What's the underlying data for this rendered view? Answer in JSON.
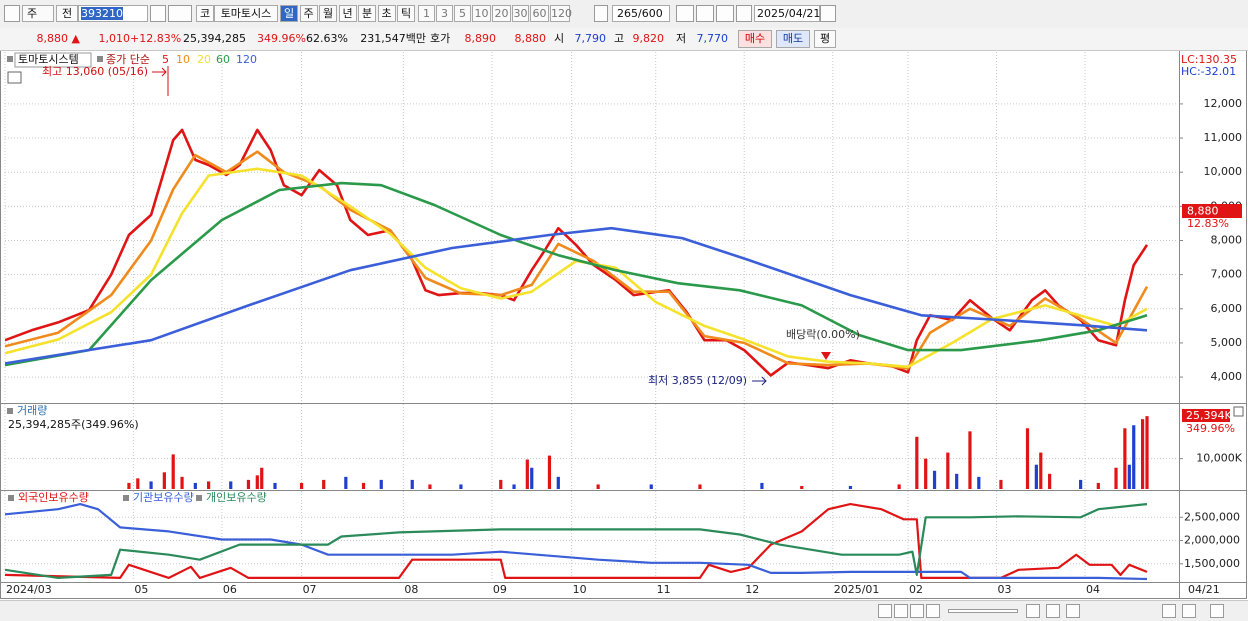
{
  "toolbar": {
    "market": "주",
    "mode": "전",
    "code": "393210",
    "tabs": [
      "코",
      "토마토시스"
    ],
    "periods": [
      "일",
      "주",
      "월",
      "년",
      "분",
      "초",
      "틱"
    ],
    "intervals": [
      "1",
      "3",
      "5",
      "10",
      "20",
      "30",
      "60",
      "120"
    ],
    "count": "265",
    "count_max": "/600",
    "date": "2025/04/21"
  },
  "quote": {
    "price": "8,880 ▲",
    "change": "1,010",
    "change_rate": "+12.83%",
    "volume": "25,394,285",
    "volume_rate": "349.96%",
    "turnover": "62.63%",
    "amount": "231,547백만",
    "ask_label": "호가",
    "ask": "8,890",
    "bid": "8,880",
    "open_label": "시",
    "open": "7,790",
    "high_label": "고",
    "high": "9,820",
    "low_label": "저",
    "low": "7,770",
    "buy": "매수",
    "sell": "매도",
    "avg": "평"
  },
  "chart_data": [
    {
      "type": "line",
      "title": "토마토시스템",
      "subtitle": "종가 단순",
      "grid": true,
      "xlim": [
        0,
        265
      ],
      "ylim": [
        3270,
        13520
      ],
      "yticks": [
        {
          "value": 4000,
          "label": "4,000"
        },
        {
          "value": 5000,
          "label": "5,000"
        },
        {
          "value": 6000,
          "label": "6,000"
        },
        {
          "value": 7000,
          "label": "7,000"
        },
        {
          "value": 8000,
          "label": "8,000"
        },
        {
          "value": 9000,
          "label": "9,000"
        },
        {
          "value": 10000,
          "label": "10,000"
        },
        {
          "value": 11000,
          "label": "11,000"
        },
        {
          "value": 12000,
          "label": "12,000"
        }
      ],
      "series": [
        {
          "name": "5",
          "color": "#e01414",
          "x": [
            0,
            6,
            12,
            19,
            24,
            28,
            33,
            36,
            38,
            40,
            43,
            46,
            50,
            53,
            57,
            60,
            63,
            67,
            71,
            75,
            78,
            82,
            87,
            92,
            95,
            98,
            103,
            107,
            112,
            115,
            119,
            122,
            125,
            129,
            133,
            138,
            142,
            147,
            150,
            154,
            158,
            163,
            167,
            173,
            177,
            182,
            186,
            191,
            195,
            200,
            204,
            206,
            209,
            214,
            218,
            223,
            227,
            232,
            235,
            238,
            243,
            247,
            251,
            253,
            255,
            258
          ],
          "values": [
            5080,
            5370,
            5600,
            5960,
            7000,
            8160,
            8750,
            10060,
            10940,
            11240,
            10360,
            10210,
            9920,
            10210,
            11240,
            10650,
            9620,
            9330,
            10060,
            9620,
            8600,
            8160,
            8300,
            7430,
            6540,
            6400,
            6460,
            6460,
            6400,
            6250,
            7130,
            7720,
            8360,
            7870,
            7280,
            6840,
            6400,
            6490,
            6540,
            5900,
            5080,
            5080,
            4790,
            4050,
            4430,
            4340,
            4260,
            4490,
            4400,
            4340,
            4140,
            5080,
            5810,
            5670,
            6250,
            5720,
            5370,
            6250,
            6540,
            6100,
            5670,
            5080,
            4930,
            6250,
            7280,
            7870
          ]
        },
        {
          "name": "10",
          "color": "#f08a1c",
          "x": [
            0,
            12,
            24,
            33,
            38,
            43,
            50,
            57,
            63,
            71,
            78,
            87,
            95,
            103,
            112,
            119,
            125,
            133,
            142,
            150,
            158,
            167,
            177,
            186,
            195,
            204,
            209,
            218,
            227,
            235,
            243,
            251,
            258
          ],
          "values": [
            4900,
            5300,
            6400,
            8000,
            9500,
            10500,
            10000,
            10600,
            10000,
            9600,
            8900,
            8300,
            6900,
            6450,
            6400,
            6700,
            7900,
            7400,
            6500,
            6500,
            5200,
            5000,
            4400,
            4350,
            4400,
            4250,
            5300,
            6000,
            5500,
            6300,
            5700,
            5000,
            6650
          ]
        },
        {
          "name": "20",
          "color": "#f5e22c",
          "x": [
            0,
            12,
            24,
            33,
            40,
            46,
            57,
            67,
            78,
            87,
            95,
            103,
            112,
            119,
            129,
            138,
            147,
            158,
            167,
            177,
            186,
            195,
            204,
            214,
            223,
            235,
            243,
            251,
            258
          ],
          "values": [
            4700,
            5100,
            5900,
            7000,
            8800,
            9900,
            10100,
            9900,
            9000,
            8200,
            7200,
            6600,
            6300,
            6500,
            7400,
            7200,
            6200,
            5500,
            5100,
            4600,
            4450,
            4400,
            4300,
            5000,
            5700,
            6100,
            5800,
            5500,
            6000
          ]
        },
        {
          "name": "60",
          "color": "#2a9a4a",
          "x": [
            0,
            19,
            33,
            49,
            62,
            76,
            85,
            97,
            112,
            125,
            138,
            152,
            166,
            180,
            193,
            204,
            216,
            234,
            247,
            258
          ],
          "values": [
            4350,
            4790,
            6840,
            8600,
            9480,
            9680,
            9620,
            9040,
            8160,
            7570,
            7130,
            6750,
            6540,
            6100,
            5230,
            4790,
            4790,
            5080,
            5370,
            5810
          ]
        },
        {
          "name": "120",
          "color": "#3a5fd8",
          "x": [
            0,
            33,
            55,
            78,
            101,
            123,
            137,
            153,
            168,
            191,
            207,
            225,
            243,
            258
          ],
          "values": [
            4400,
            5080,
            6100,
            7130,
            7780,
            8160,
            8360,
            8070,
            7430,
            6400,
            5810,
            5670,
            5520,
            5370
          ]
        }
      ],
      "annotations": [
        "최고 13,060 (05/16)",
        "최저 3,855 (12/09)",
        "배당락(0.00%)"
      ],
      "right_labels": {
        "lc": "LC:130.35",
        "hc": "HC:-32.01",
        "last_price": "8,880",
        "last_rate": "12.83%"
      }
    },
    {
      "type": "bar",
      "title": "거래량",
      "subtitle": "25,394,285주(349.96%)",
      "grid": true,
      "xlim": [
        0,
        265
      ],
      "ylim": [
        0,
        28000
      ],
      "yticks": [
        {
          "value": 10000,
          "label": "10,000K"
        }
      ],
      "x": [
        28,
        30,
        33,
        36,
        38,
        40,
        43,
        46,
        51,
        55,
        57,
        58,
        61,
        67,
        72,
        77,
        81,
        85,
        92,
        96,
        103,
        112,
        115,
        118,
        119,
        123,
        125,
        134,
        146,
        157,
        171,
        180,
        191,
        202,
        206,
        208,
        210,
        213,
        215,
        218,
        220,
        225,
        231,
        233,
        234,
        236,
        243,
        247,
        251,
        253,
        254,
        255,
        257,
        258
      ],
      "values": [
        2000,
        3500,
        2500,
        5500,
        11400,
        4000,
        2000,
        2500,
        2500,
        3000,
        4500,
        7000,
        2000,
        2000,
        3000,
        4000,
        2000,
        3000,
        3000,
        1500,
        1500,
        3000,
        1500,
        9700,
        7000,
        11000,
        4000,
        1500,
        1500,
        1500,
        2000,
        1000,
        1000,
        1500,
        17200,
        10000,
        6000,
        12000,
        5000,
        19000,
        4000,
        3000,
        20000,
        8000,
        12000,
        5000,
        3000,
        2000,
        7000,
        20000,
        8000,
        21000,
        23000,
        24000
      ],
      "colors": [
        "#e01414",
        "#e01414",
        "#1f3fcf",
        "#e01414",
        "#e01414",
        "#e01414",
        "#1f3fcf",
        "#e01414",
        "#1f3fcf",
        "#e01414",
        "#e01414",
        "#e01414",
        "#1f3fcf",
        "#e01414",
        "#e01414",
        "#1f3fcf",
        "#e01414",
        "#1f3fcf",
        "#1f3fcf",
        "#e01414",
        "#1f3fcf",
        "#e01414",
        "#1f3fcf",
        "#e01414",
        "#1f3fcf",
        "#e01414",
        "#1f3fcf",
        "#e01414",
        "#1f3fcf",
        "#e01414",
        "#1f3fcf",
        "#e01414",
        "#1f3fcf",
        "#e01414",
        "#e01414",
        "#e01414",
        "#1f3fcf",
        "#e01414",
        "#1f3fcf",
        "#e01414",
        "#1f3fcf",
        "#e01414",
        "#e01414",
        "#1f3fcf",
        "#e01414",
        "#e01414",
        "#1f3fcf",
        "#e01414",
        "#e01414",
        "#e01414",
        "#1f3fcf",
        "#1f3fcf",
        "#e01414",
        "#e01414"
      ],
      "tag": "25,394K",
      "tag_rate": "349.96%"
    },
    {
      "type": "line",
      "grid": true,
      "xlim": [
        0,
        265
      ],
      "ylim": [
        1130000,
        3065000
      ],
      "yticks": [
        {
          "value": 1500000,
          "label": "1,500,000"
        },
        {
          "value": 2000000,
          "label": "2,000,000"
        },
        {
          "value": 2500000,
          "label": "2,500,000"
        }
      ],
      "xticks": [
        {
          "value": 0,
          "label": "2024/03"
        },
        {
          "value": 29,
          "label": "05"
        },
        {
          "value": 49,
          "label": "06"
        },
        {
          "value": 67,
          "label": "07"
        },
        {
          "value": 90,
          "label": "08"
        },
        {
          "value": 110,
          "label": "09"
        },
        {
          "value": 128,
          "label": "10"
        },
        {
          "value": 147,
          "label": "11"
        },
        {
          "value": 167,
          "label": "12"
        },
        {
          "value": 187,
          "label": "2025/01"
        },
        {
          "value": 204,
          "label": "02"
        },
        {
          "value": 224,
          "label": "03"
        },
        {
          "value": 244,
          "label": "04"
        }
      ],
      "x_end_label": "04/21",
      "series": [
        {
          "name": "외국인보유수량",
          "color": "#e01414",
          "x": [
            0,
            26,
            28,
            37,
            42,
            44,
            51,
            55,
            89,
            92,
            112,
            113,
            157,
            159,
            164,
            168,
            173,
            180,
            186,
            191,
            198,
            203,
            206,
            207,
            225,
            229,
            238,
            242,
            245,
            250,
            252,
            254,
            258
          ],
          "values": [
            1261000,
            1196000,
            1478000,
            1196000,
            1435000,
            1196000,
            1413000,
            1196000,
            1196000,
            1587000,
            1587000,
            1196000,
            1196000,
            1478000,
            1326000,
            1413000,
            1913000,
            2196000,
            2674000,
            2783000,
            2674000,
            2457000,
            2457000,
            1196000,
            1196000,
            1370000,
            1413000,
            1696000,
            1478000,
            1478000,
            1261000,
            1478000,
            1326000
          ]
        },
        {
          "name": "기관보유수량",
          "color": "#3a5fd8",
          "x": [
            0,
            12,
            17,
            21,
            26,
            37,
            49,
            60,
            67,
            73,
            85,
            101,
            112,
            123,
            134,
            146,
            157,
            168,
            173,
            180,
            191,
            202,
            216,
            218,
            225,
            247,
            258
          ],
          "values": [
            2565000,
            2674000,
            2783000,
            2674000,
            2283000,
            2196000,
            2022000,
            2022000,
            1913000,
            1696000,
            1696000,
            1696000,
            1761000,
            1674000,
            1587000,
            1522000,
            1522000,
            1478000,
            1304000,
            1304000,
            1326000,
            1326000,
            1326000,
            1196000,
            1196000,
            1196000,
            1174000
          ]
        },
        {
          "name": "개인보유수량",
          "color": "#2a8a5a",
          "x": [
            0,
            12,
            24,
            26,
            37,
            44,
            53,
            62,
            73,
            76,
            89,
            112,
            125,
            134,
            157,
            166,
            175,
            189,
            202,
            205,
            206,
            208,
            218,
            229,
            243,
            247,
            258
          ],
          "values": [
            1370000,
            1196000,
            1261000,
            1804000,
            1696000,
            1587000,
            1913000,
            1913000,
            1913000,
            2087000,
            2174000,
            2239000,
            2239000,
            2239000,
            2239000,
            2130000,
            1913000,
            1696000,
            1696000,
            1761000,
            1261000,
            2500000,
            2500000,
            2522000,
            2500000,
            2674000,
            2783000
          ]
        }
      ]
    }
  ]
}
